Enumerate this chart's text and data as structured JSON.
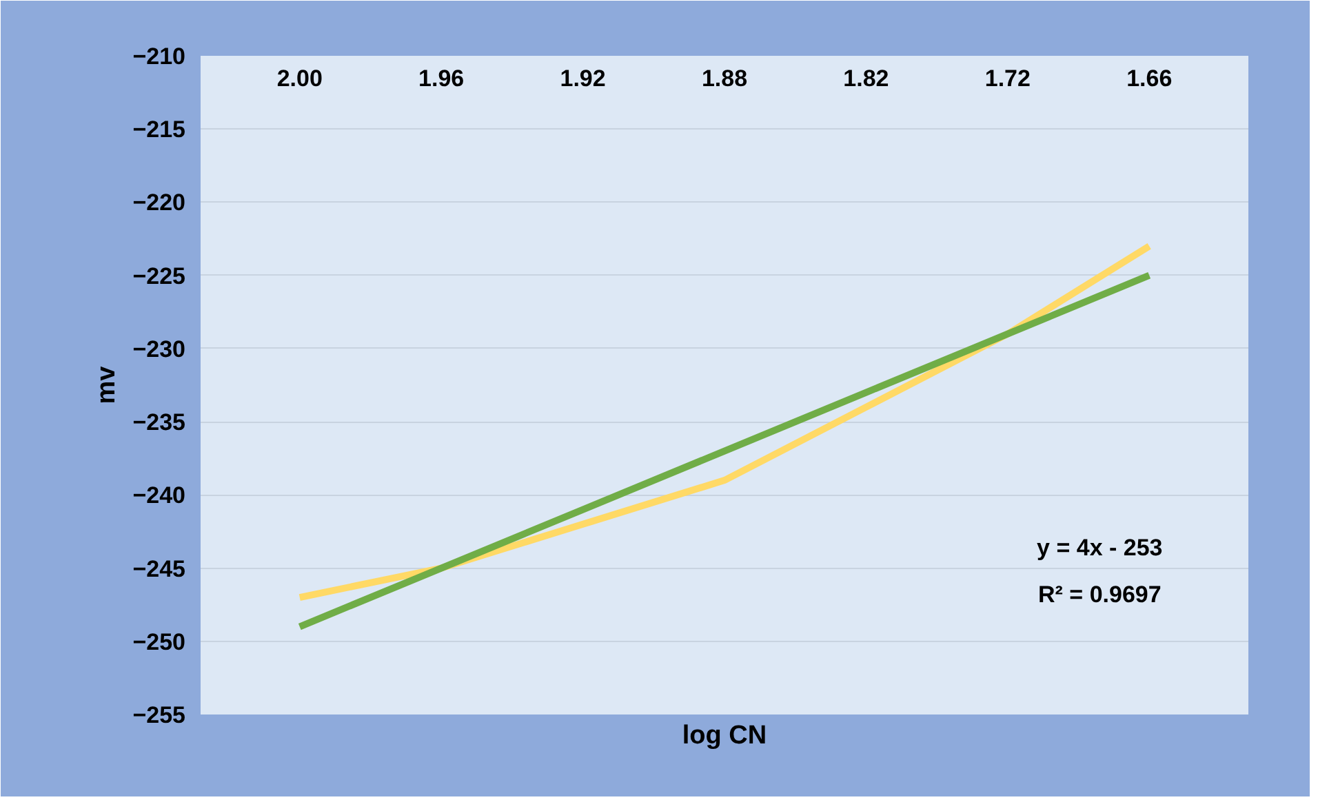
{
  "chart_data": {
    "type": "line",
    "xlabel": "log CN",
    "ylabel": "mv",
    "categories": [
      "2.00",
      "1.96",
      "1.92",
      "1.88",
      "1.82",
      "1.72",
      "1.66"
    ],
    "series": [
      {
        "color": "#ffd966",
        "values": [
          -247,
          -245,
          -242,
          -239,
          -234,
          -229,
          -223
        ]
      },
      {
        "color": "#70ad47",
        "values": [
          -249,
          -245,
          -241,
          -237,
          -233,
          -229,
          -225
        ]
      }
    ],
    "ylim": [
      -255,
      -210
    ],
    "yticks": [
      -255,
      -250,
      -245,
      -240,
      -235,
      -230,
      -225,
      -220,
      -215,
      -210
    ],
    "grid": "y",
    "marker": "none",
    "line_style": "solid",
    "annotations": [
      "y = 4x - 253",
      "R² = 0.9697"
    ]
  }
}
